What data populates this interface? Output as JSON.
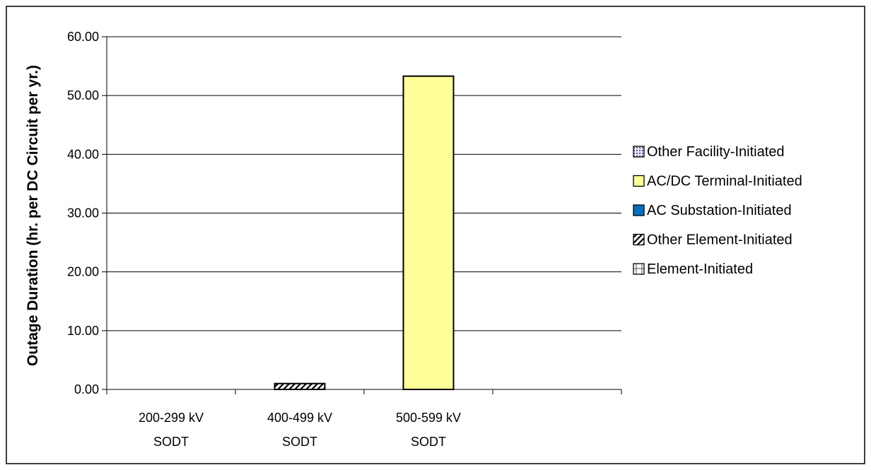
{
  "chart_data": {
    "type": "bar",
    "stacked": true,
    "title": "",
    "xlabel": "",
    "ylabel": "Outage Duration (hr. per DC Circuit per yr.)",
    "ylim": [
      0,
      60
    ],
    "y_ticks": [
      "0.00",
      "10.00",
      "20.00",
      "30.00",
      "40.00",
      "50.00",
      "60.00"
    ],
    "y_tick_values": [
      0,
      10,
      20,
      30,
      40,
      50,
      60
    ],
    "grid": true,
    "legend_position": "right",
    "category_slots": 4,
    "categories": [
      [
        "200-299 kV",
        "SODT"
      ],
      [
        "400-499 kV",
        "SODT"
      ],
      [
        "500-599 kV",
        "SODT"
      ]
    ],
    "series": [
      {
        "name": "Element-Initiated",
        "values": [
          0,
          0,
          0
        ],
        "color": "#ffffff",
        "pattern": "grid"
      },
      {
        "name": "Other Element-Initiated",
        "values": [
          0,
          1.0,
          0
        ],
        "color": "#ffffff",
        "pattern": "diagonal"
      },
      {
        "name": "AC Substation-Initiated",
        "values": [
          0,
          0,
          0
        ],
        "color": "#0070c0",
        "pattern": "solid"
      },
      {
        "name": "AC/DC Terminal-Initiated",
        "values": [
          0,
          0,
          53.3
        ],
        "color": "#ffff99",
        "pattern": "solid"
      },
      {
        "name": "Other Facility-Initiated",
        "values": [
          0,
          0,
          0
        ],
        "color": "#ffffff",
        "pattern": "dots"
      }
    ],
    "legend_order": [
      4,
      3,
      2,
      1,
      0
    ]
  }
}
